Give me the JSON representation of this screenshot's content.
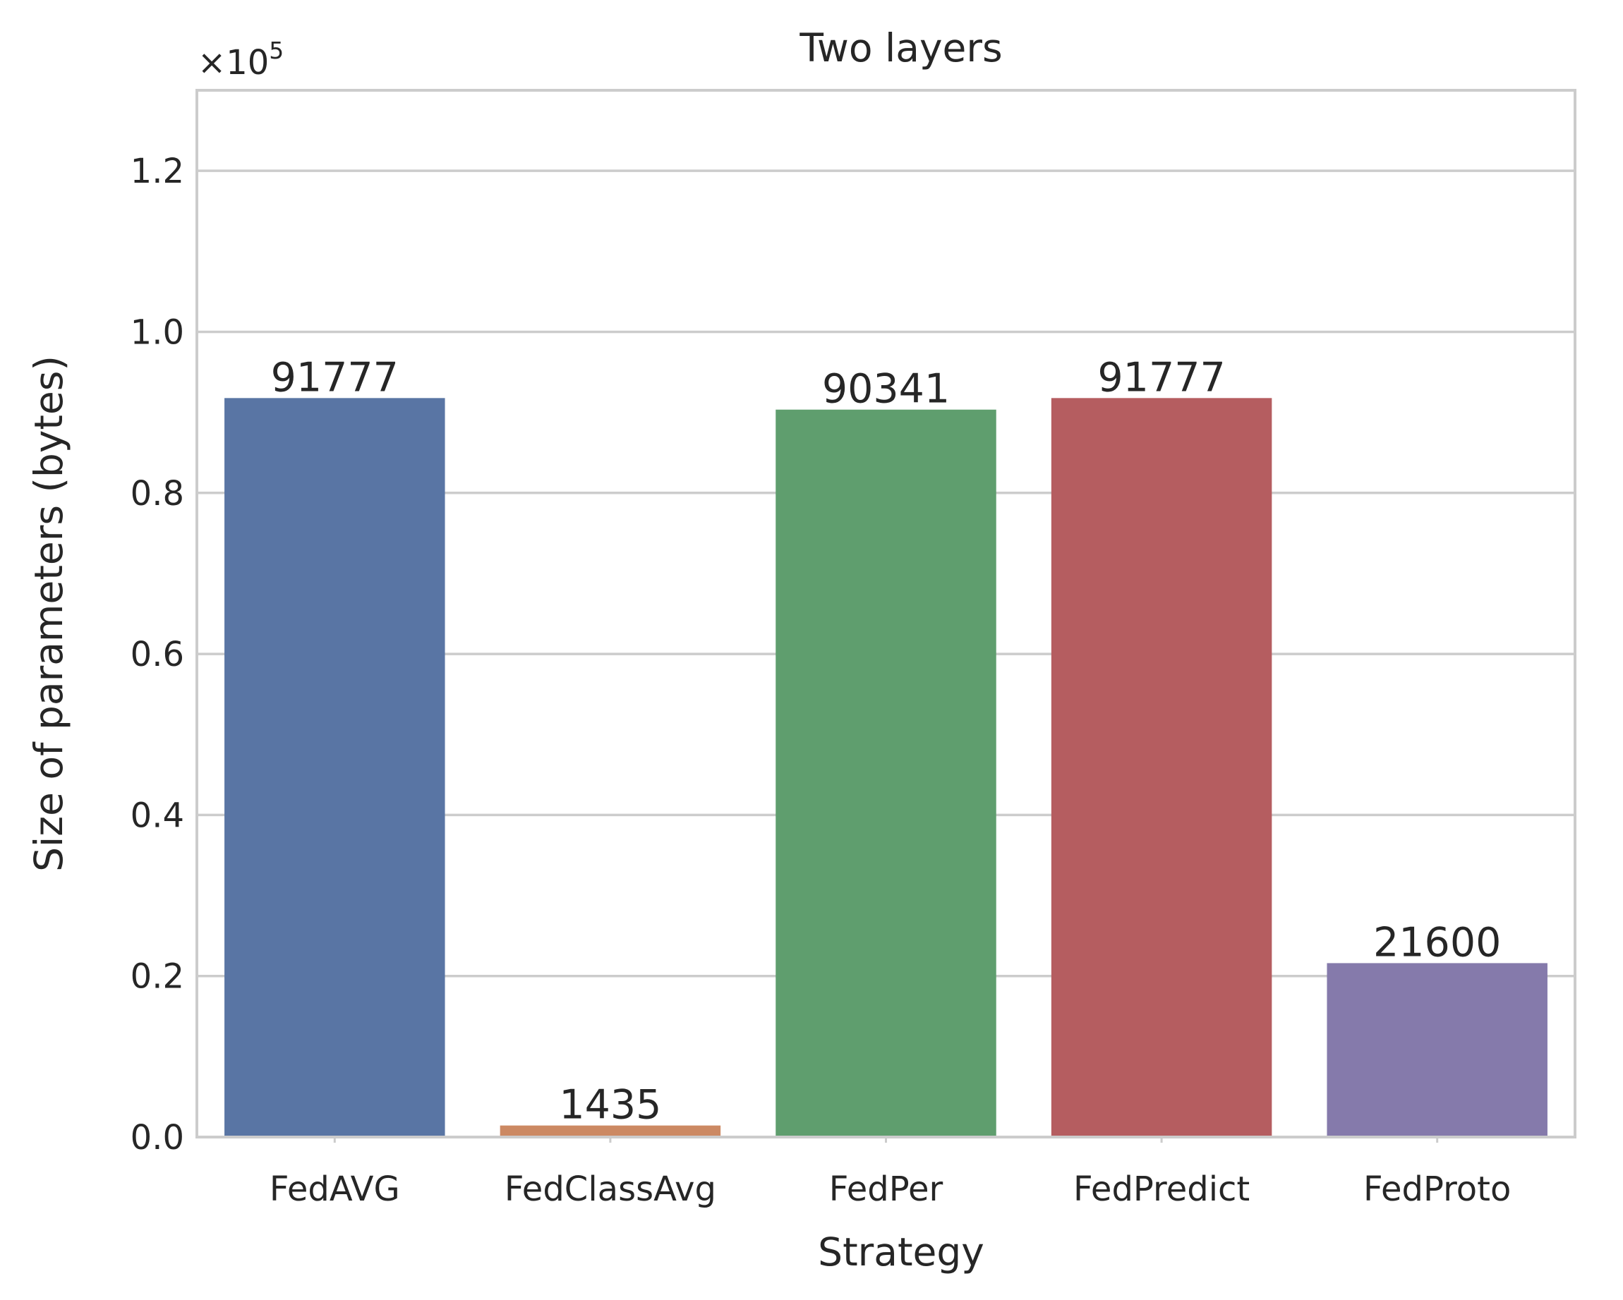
{
  "chart_data": {
    "type": "bar",
    "title": "Two layers",
    "xlabel": "Strategy",
    "ylabel": "Size of parameters (bytes)",
    "y_offset_label": {
      "base": "×10",
      "exponent": "5"
    },
    "categories": [
      "FedAVG",
      "FedClassAvg",
      "FedPer",
      "FedPredict",
      "FedProto"
    ],
    "values": [
      91777,
      1435,
      90341,
      91777,
      21600
    ],
    "data_labels": [
      "91777",
      "1435",
      "90341",
      "91777",
      "21600"
    ],
    "colors": [
      "#5975a4",
      "#cc8963",
      "#5f9e6e",
      "#b55d60",
      "#857aab"
    ],
    "ylim": [
      0,
      130000
    ],
    "yticks": [
      0,
      20000,
      40000,
      60000,
      80000,
      100000,
      120000
    ],
    "ytick_labels": [
      "0.0",
      "0.2",
      "0.4",
      "0.6",
      "0.8",
      "1.0",
      "1.2"
    ],
    "grid": true,
    "legend": "none"
  }
}
